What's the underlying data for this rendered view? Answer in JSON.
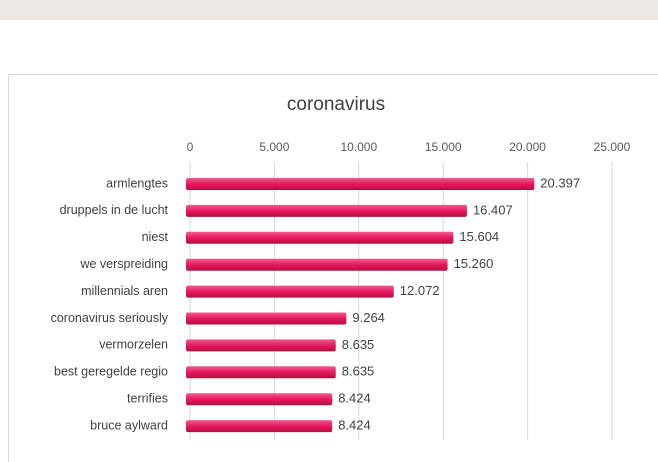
{
  "chart_data": {
    "type": "bar",
    "orientation": "horizontal",
    "title": "coronavirus",
    "categories": [
      "armlengtes",
      "druppels in de lucht",
      "niest",
      "we verspreiding",
      "millennials aren",
      "coronavirus seriously",
      "vermorzelen",
      "best geregelde regio",
      "terrifies",
      "bruce aylward"
    ],
    "values": [
      20397,
      16407,
      15604,
      15260,
      12072,
      9264,
      8635,
      8635,
      8424,
      8424
    ],
    "value_labels": [
      "20.397",
      "16.407",
      "15.604",
      "15.260",
      "12.072",
      "9.264",
      "8.635",
      "8.635",
      "8.424",
      "8.424"
    ],
    "color": "#e8185f",
    "xlim": [
      0,
      25000
    ],
    "xticks": [
      0,
      {
        "value": 5000,
        "label": "5.000"
      },
      {
        "value": 10000,
        "label": "10.000"
      },
      {
        "value": 15000,
        "label": "15.000"
      },
      {
        "value": 20000,
        "label": "20.000"
      },
      {
        "value": 25000,
        "label": "25.000"
      }
    ],
    "grid": true
  }
}
